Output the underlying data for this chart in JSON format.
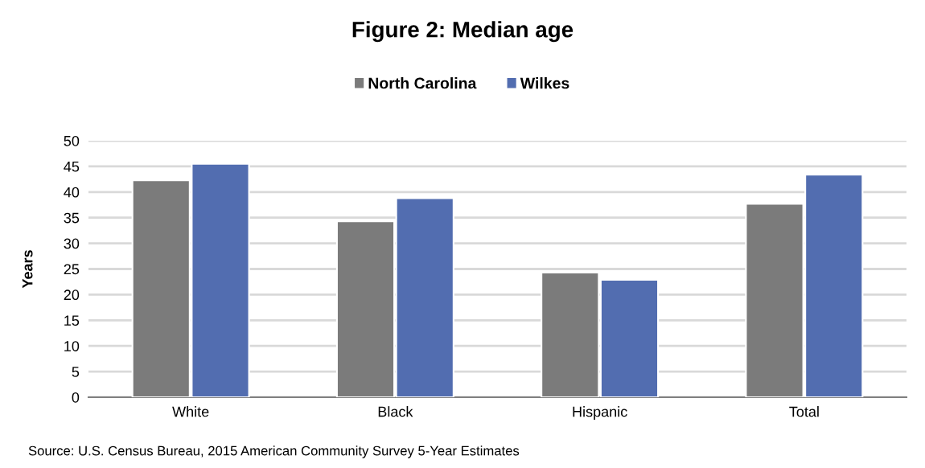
{
  "chart_data": {
    "type": "bar",
    "title": "Figure 2: Median age",
    "ylabel": "Years",
    "categories": [
      "White",
      "Black",
      "Hispanic",
      "Total"
    ],
    "series": [
      {
        "name": "North Carolina",
        "color": "#7b7b7b",
        "values": [
          42.3,
          34.3,
          24.3,
          37.7
        ]
      },
      {
        "name": "Wilkes",
        "color": "#526db0",
        "values": [
          45.5,
          38.8,
          22.9,
          43.4
        ]
      }
    ],
    "ylim": [
      0,
      50
    ],
    "yticks": [
      0,
      5,
      10,
      15,
      20,
      25,
      30,
      35,
      40,
      45,
      50
    ],
    "grid": "y",
    "legend": "top",
    "annotations": [
      "Source: U.S. Census Bureau, 2015 American Community Survey 5-Year Estimates"
    ]
  }
}
